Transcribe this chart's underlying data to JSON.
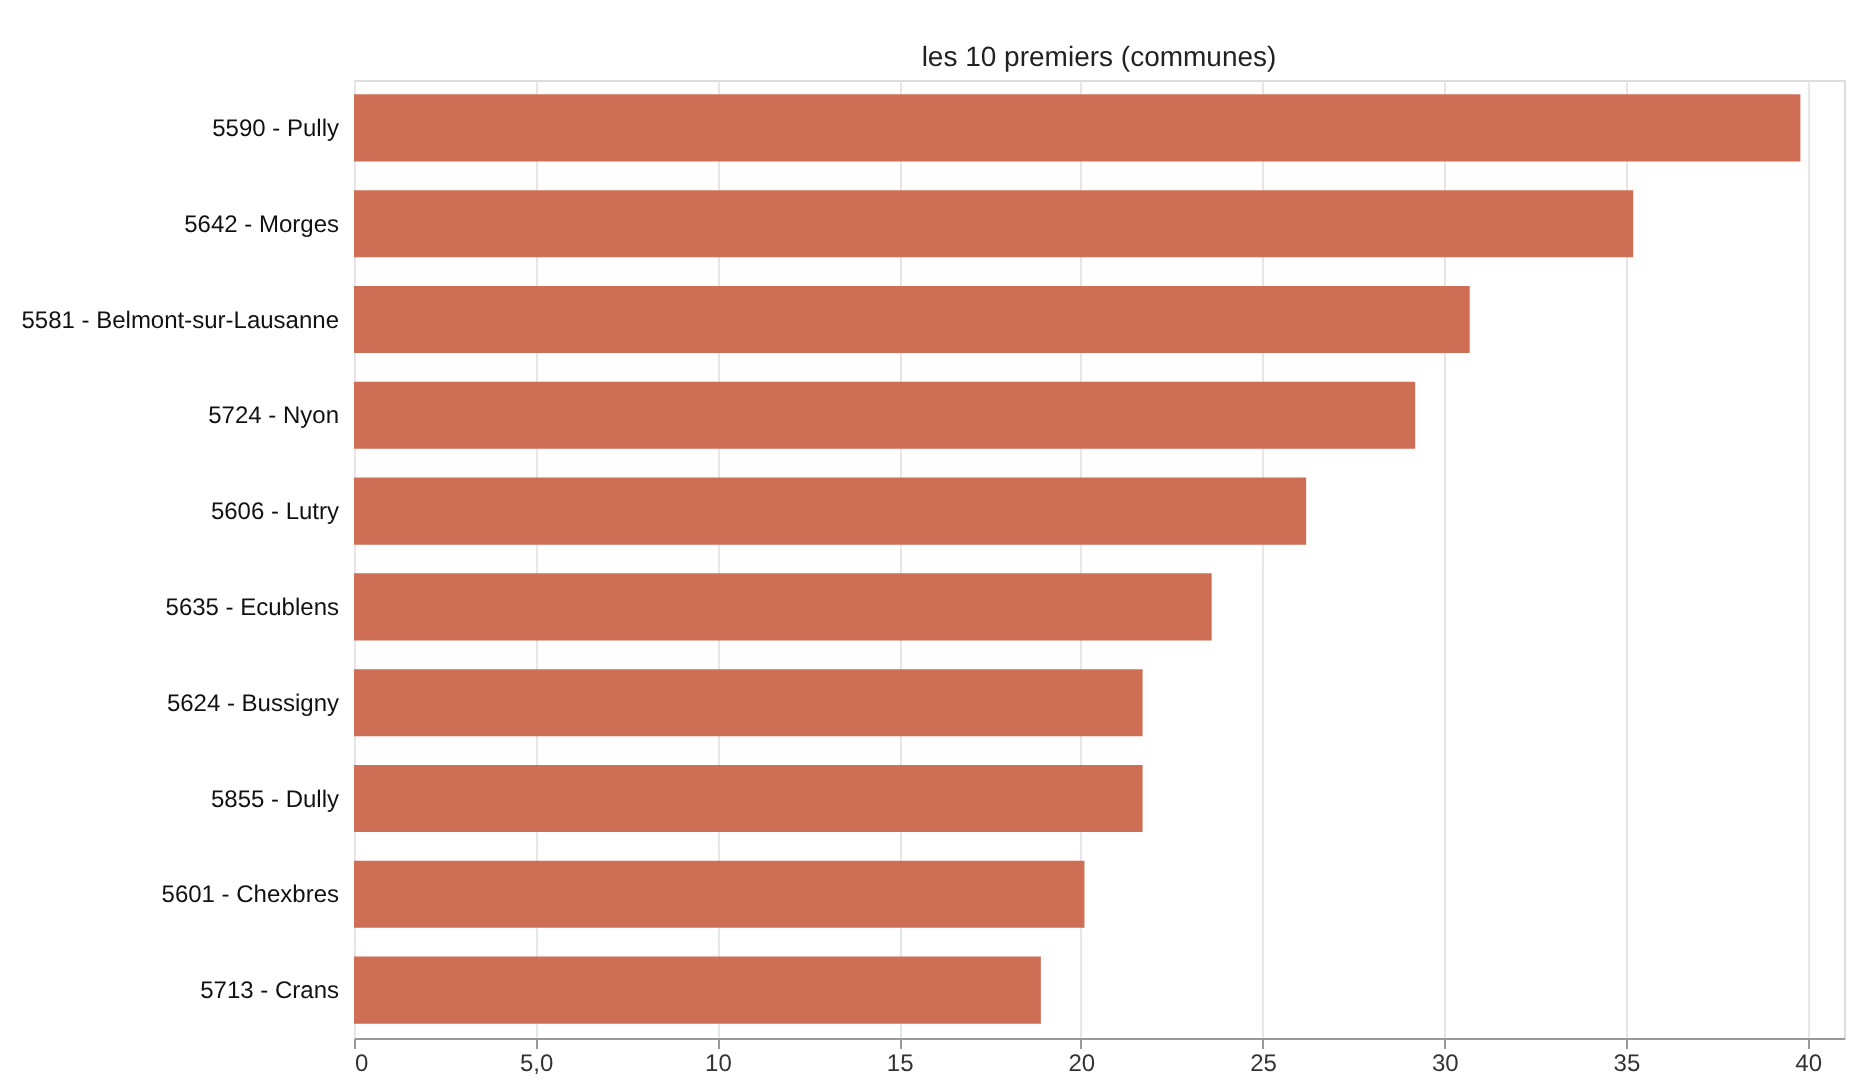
{
  "chart_data": {
    "type": "bar",
    "orientation": "horizontal",
    "title": "les 10 premiers (communes)",
    "categories": [
      "5590 - Pully",
      "5642 - Morges",
      "5581 - Belmont-sur-Lausanne",
      "5724 - Nyon",
      "5606 - Lutry",
      "5635 - Ecublens",
      "5624 - Bussigny",
      "5855 - Dully",
      "5601 - Chexbres",
      "5713 - Crans"
    ],
    "values": [
      39.8,
      35.2,
      30.7,
      29.2,
      26.2,
      23.6,
      21.7,
      21.7,
      20.1,
      18.9
    ],
    "color": "#cd6e55",
    "xlim": [
      0,
      41
    ],
    "xticks": [
      0,
      {
        "value": 5,
        "label": "5,0"
      },
      10,
      15,
      20,
      25,
      30,
      35,
      40
    ],
    "grid": "x"
  }
}
